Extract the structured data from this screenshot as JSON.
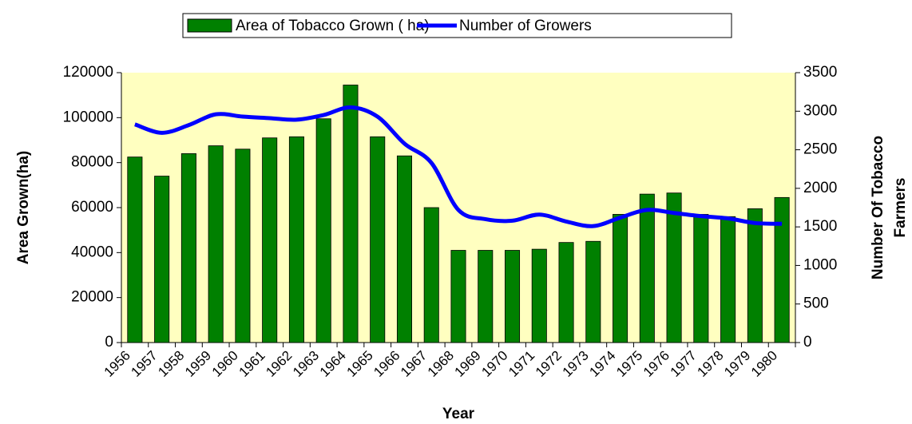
{
  "chart_data": {
    "type": "bar_line",
    "categories": [
      "1956",
      "1957",
      "1958",
      "1959",
      "1960",
      "1961",
      "1962",
      "1963",
      "1964",
      "1965",
      "1966",
      "1967",
      "1968",
      "1969",
      "1970",
      "1971",
      "1972",
      "1973",
      "1974",
      "1975",
      "1976",
      "1977",
      "1978",
      "1979",
      "1980"
    ],
    "series": [
      {
        "name": "Area of Tobacco Grown ( ha)",
        "type": "bar",
        "color": "#008000",
        "values": [
          82500,
          74000,
          84000,
          87500,
          86000,
          91000,
          91500,
          99500,
          114500,
          91500,
          83000,
          60000,
          41000,
          41000,
          41000,
          41500,
          44500,
          45000,
          57000,
          66000,
          66500,
          57000,
          56000,
          59500,
          64500
        ]
      },
      {
        "name": "Number of Growers",
        "type": "line",
        "axis": "y2",
        "color": "#0000ff",
        "values": [
          2830,
          2720,
          2820,
          2960,
          2930,
          2910,
          2890,
          2950,
          3050,
          2930,
          2580,
          2330,
          1720,
          1600,
          1580,
          1660,
          1570,
          1510,
          1620,
          1720,
          1680,
          1640,
          1610,
          1550,
          1540
        ]
      }
    ],
    "x_label": "Year",
    "y_label": "Area Grown(ha)",
    "y2_label": [
      "Number Of Tobacco",
      "Farmers"
    ],
    "ylim": [
      0,
      120000
    ],
    "yticks": [
      0,
      20000,
      40000,
      60000,
      80000,
      100000,
      120000
    ],
    "y2lim": [
      0,
      3500
    ],
    "y2ticks": [
      0,
      500,
      1000,
      1500,
      2000,
      2500,
      3000,
      3500
    ],
    "grid": false,
    "legend": "top"
  }
}
